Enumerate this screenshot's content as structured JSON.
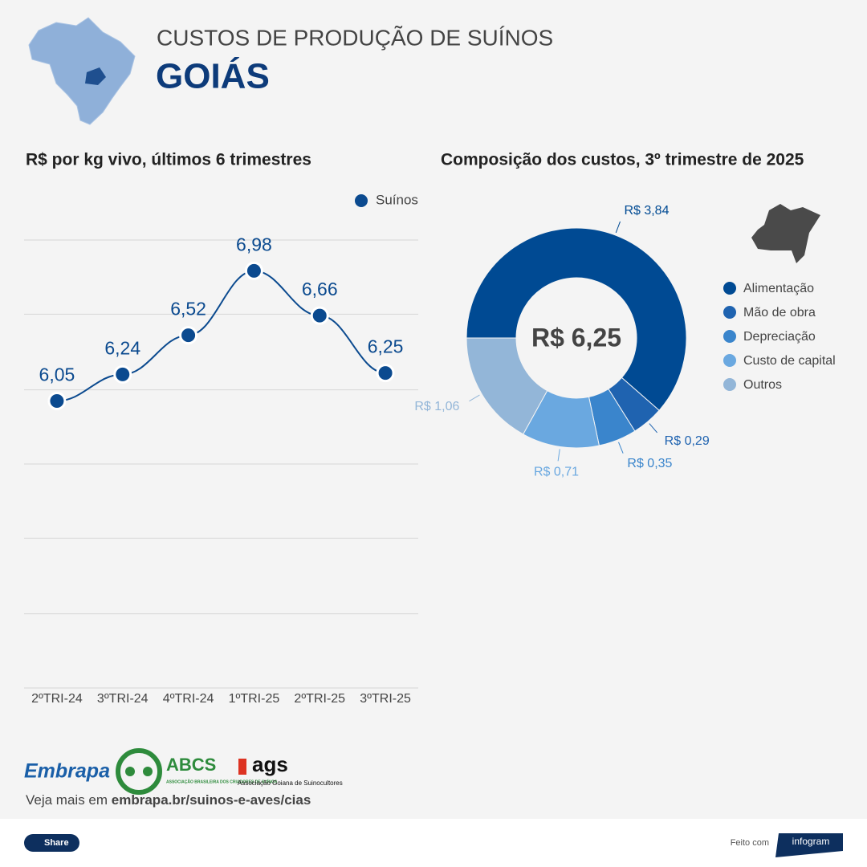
{
  "header": {
    "title": "CUSTOS DE PRODUÇÃO DE SUÍNOS",
    "subtitle": "GOIÁS"
  },
  "chart_data": [
    {
      "type": "line",
      "title": "R$ por kg vivo, últimos 6 trimestres",
      "categories": [
        "2ºTRI-24",
        "3ºTRI-24",
        "4ºTRI-24",
        "1ºTRI-25",
        "2ºTRI-25",
        "3ºTRI-25"
      ],
      "series": [
        {
          "name": "Suínos",
          "color": "#0b4a8f",
          "values": [
            6.05,
            6.24,
            6.52,
            6.98,
            6.66,
            6.25
          ],
          "value_labels": [
            "6,05",
            "6,24",
            "6,52",
            "6,98",
            "6,66",
            "6,25"
          ]
        }
      ],
      "ylim": [
        4,
        7.2
      ],
      "yticks": [
        4,
        4.53,
        5.07,
        5.6,
        6.13,
        6.67,
        7.2
      ],
      "grid": true,
      "legend": "top-right"
    },
    {
      "type": "donut",
      "title": "Composição dos custos, 3º trimestre de 2025",
      "center_label": "R$ 6,25",
      "categories": [
        "Alimentação",
        "Mão de obra",
        "Depreciação",
        "Custo de capital",
        "Outros"
      ],
      "values": [
        3.84,
        0.29,
        0.35,
        0.71,
        1.06
      ],
      "value_labels": [
        "R$ 3,84",
        "R$ 0,29",
        "R$ 0,35",
        "R$ 0,71",
        "R$ 1,06"
      ],
      "colors": [
        "#004a93",
        "#1f63b0",
        "#3a85cc",
        "#6aa8e0",
        "#93b6d8"
      ],
      "legend": "right"
    }
  ],
  "footer": {
    "logos": [
      "Embrapa",
      "ABCS",
      "ASSOCIAÇÃO BRASILEIRA DOS CRIADORES DE SUÍNOS",
      "ags",
      "Associação Goiana de Suinocultores"
    ],
    "more_prefix": "Veja mais em",
    "more_link": "embrapa.br/suinos-e-aves/cias",
    "share": "Share",
    "made_with": "Feito com",
    "brand": "infogram"
  }
}
